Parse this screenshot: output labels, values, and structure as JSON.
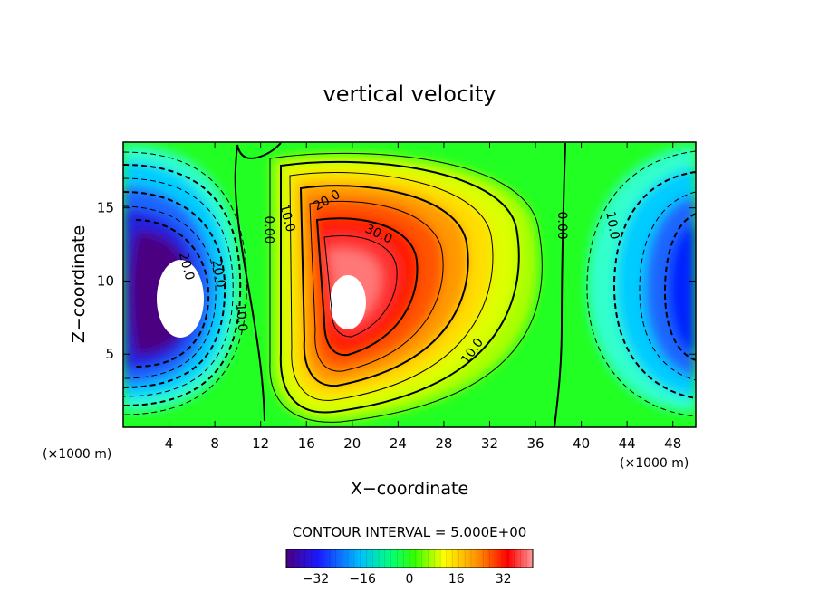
{
  "chart_data": {
    "type": "heatmap",
    "title": "vertical velocity",
    "xlabel": "X−coordinate",
    "ylabel": "Z−coordinate",
    "x_unit_left": "(×1000 m)",
    "x_unit_right": "(×1000 m)",
    "xlim": [
      0,
      50
    ],
    "ylim": [
      0,
      19.5
    ],
    "x_ticks": [
      4,
      8,
      12,
      16,
      20,
      24,
      28,
      32,
      36,
      40,
      44,
      48
    ],
    "y_ticks": [
      5,
      10,
      15
    ],
    "contour_interval_text": "CONTOUR INTERVAL = 5.000E+00",
    "contour_interval": 5,
    "colorbar": {
      "range": [
        -42,
        42
      ],
      "ticks": [
        -32,
        -16,
        0,
        16,
        32
      ],
      "tick_labels": [
        "−32",
        "−16",
        "0",
        "16",
        "32"
      ],
      "colors": [
        "#4b0082",
        "#1a1aff",
        "#00bfff",
        "#00ff80",
        "#33ff00",
        "#ffff00",
        "#ff8c00",
        "#ff0000",
        "#ff9999"
      ]
    },
    "extrema": [
      {
        "name": "downdraft-left",
        "x": 5,
        "z": 9.3,
        "value": -42
      },
      {
        "name": "updraft-center",
        "x": 19.5,
        "z": 9,
        "value": 42
      },
      {
        "name": "downdraft-right",
        "x": 50,
        "z": 10,
        "value": -30
      }
    ],
    "contour_labels": [
      {
        "text": "20.0",
        "x": 5.5,
        "z": 11,
        "rotation": 75
      },
      {
        "text": "20.0",
        "x": 8.3,
        "z": 10.5,
        "rotation": 80
      },
      {
        "text": "10.0",
        "x": 10.3,
        "z": 7.5,
        "rotation": 85
      },
      {
        "text": "0.00",
        "x": 12.7,
        "z": 13.5,
        "rotation": 90
      },
      {
        "text": "10.0",
        "x": 14.3,
        "z": 14.3,
        "rotation": 75
      },
      {
        "text": "20.0",
        "x": 17.8,
        "z": 15.5,
        "rotation": -30
      },
      {
        "text": "30.0",
        "x": 22.3,
        "z": 13.2,
        "rotation": 25
      },
      {
        "text": "10.0",
        "x": 30.5,
        "z": 5.2,
        "rotation": -55
      },
      {
        "text": "0.00",
        "x": 38.3,
        "z": 13.8,
        "rotation": 90
      },
      {
        "text": "10.0",
        "x": 42.7,
        "z": 13.8,
        "rotation": 80
      }
    ]
  }
}
